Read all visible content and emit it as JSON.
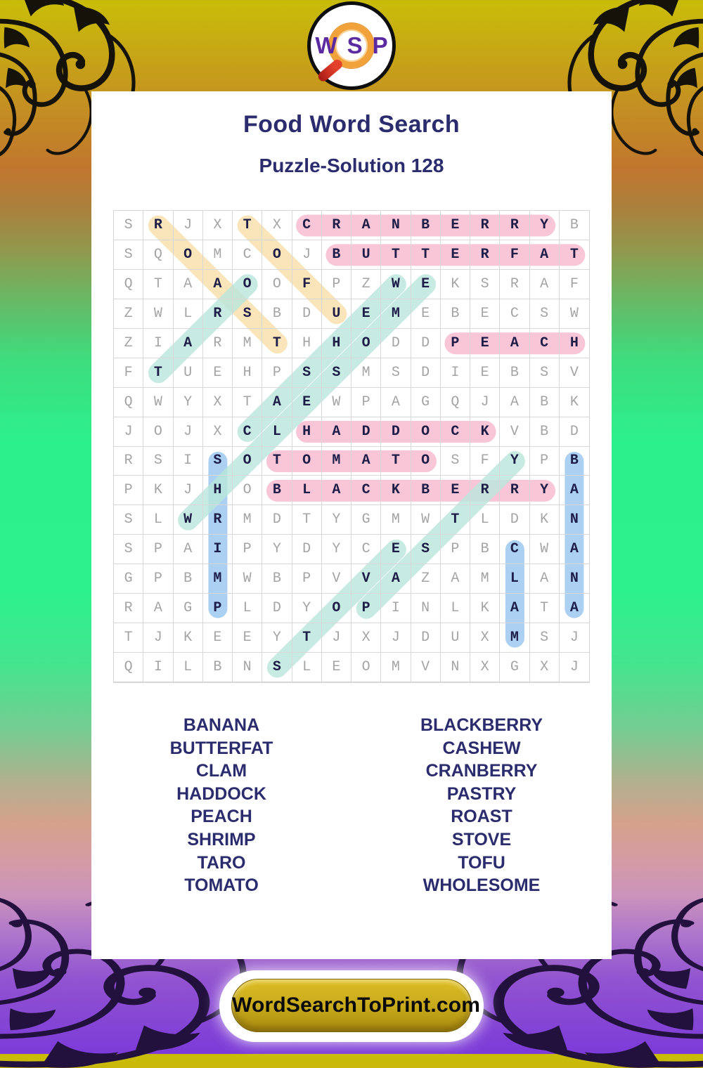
{
  "logo": {
    "w": "W",
    "s": "S",
    "p": "P"
  },
  "header": {
    "title": "Food Word Search",
    "subtitle": "Puzzle-Solution 128"
  },
  "grid": {
    "rows": [
      "SRJXTXCRANBERRYB",
      "SQOMCOJBUTTERFAT",
      "QTAAOOFPZWEKSRAF",
      "ZWLRSBDUEMEBECSW",
      "ZIARMTHHODDPEACH",
      "FTUEHPSSMSDIEBSV",
      "QWYXTAEWPAGQJABK",
      "JOJXCLHADDOCKVBD",
      "RSISOTOMATOSFYPB",
      "PKJHOBLACKBERRYA",
      "SLWRMDTYGMWTLDKN",
      "SPAIPYDYCESPBCWA",
      "GPBMWBPVVAZAMLAN",
      "RAGPLDYOPINLKATA",
      "TJKEEYTJXJDUXMSJ",
      "QILBNSLEOMVNXGXJ"
    ]
  },
  "palette": {
    "pink": "#f8c6d6",
    "yellow": "#f9e5b9",
    "teal": "#b9e6dc",
    "blue": "#abd0f1"
  },
  "highlights": [
    {
      "word": "ROAST",
      "color": "yellow",
      "from": [
        2,
        1
      ],
      "to": [
        6,
        5
      ]
    },
    {
      "word": "TOFU",
      "color": "yellow",
      "from": [
        5,
        1
      ],
      "to": [
        8,
        4
      ]
    },
    {
      "word": "CRANBERRY",
      "color": "pink",
      "from": [
        7,
        1
      ],
      "to": [
        15,
        1
      ]
    },
    {
      "word": "BUTTERFAT",
      "color": "pink",
      "from": [
        8,
        2
      ],
      "to": [
        16,
        2
      ]
    },
    {
      "word": "PEACH",
      "color": "pink",
      "from": [
        12,
        5
      ],
      "to": [
        16,
        5
      ]
    },
    {
      "word": "HADDOCK",
      "color": "pink",
      "from": [
        7,
        8
      ],
      "to": [
        13,
        8
      ]
    },
    {
      "word": "TOMATO",
      "color": "pink",
      "from": [
        6,
        9
      ],
      "to": [
        11,
        9
      ]
    },
    {
      "word": "BLACKBERRY",
      "color": "pink",
      "from": [
        6,
        10
      ],
      "to": [
        15,
        10
      ]
    },
    {
      "word": "SHRIMP",
      "color": "blue",
      "from": [
        4,
        9
      ],
      "to": [
        4,
        14
      ]
    },
    {
      "word": "BANANA",
      "color": "blue",
      "from": [
        16,
        9
      ],
      "to": [
        16,
        14
      ]
    },
    {
      "word": "CLAM",
      "color": "blue",
      "from": [
        14,
        12
      ],
      "to": [
        14,
        15
      ]
    },
    {
      "word": "TARO",
      "color": "teal",
      "from": [
        2,
        6
      ],
      "to": [
        5,
        3
      ]
    },
    {
      "word": "CASHEW",
      "color": "teal",
      "from": [
        5,
        8
      ],
      "to": [
        10,
        3
      ]
    },
    {
      "word": "WHOLESOME",
      "color": "teal",
      "from": [
        3,
        11
      ],
      "to": [
        11,
        3
      ]
    },
    {
      "word": "PASTRY",
      "color": "teal",
      "from": [
        9,
        14
      ],
      "to": [
        14,
        9
      ]
    },
    {
      "word": "STOVE",
      "color": "teal",
      "from": [
        6,
        16
      ],
      "to": [
        10,
        12
      ]
    }
  ],
  "word_list": {
    "left": [
      "BANANA",
      "BUTTERFAT",
      "CLAM",
      "HADDOCK",
      "PEACH",
      "SHRIMP",
      "TARO",
      "TOMATO"
    ],
    "right": [
      "BLACKBERRY",
      "CASHEW",
      "CRANBERRY",
      "PASTRY",
      "ROAST",
      "STOVE",
      "TOFU",
      "WHOLESOME"
    ]
  },
  "footer": {
    "site": "WordSearchToPrint.com"
  }
}
